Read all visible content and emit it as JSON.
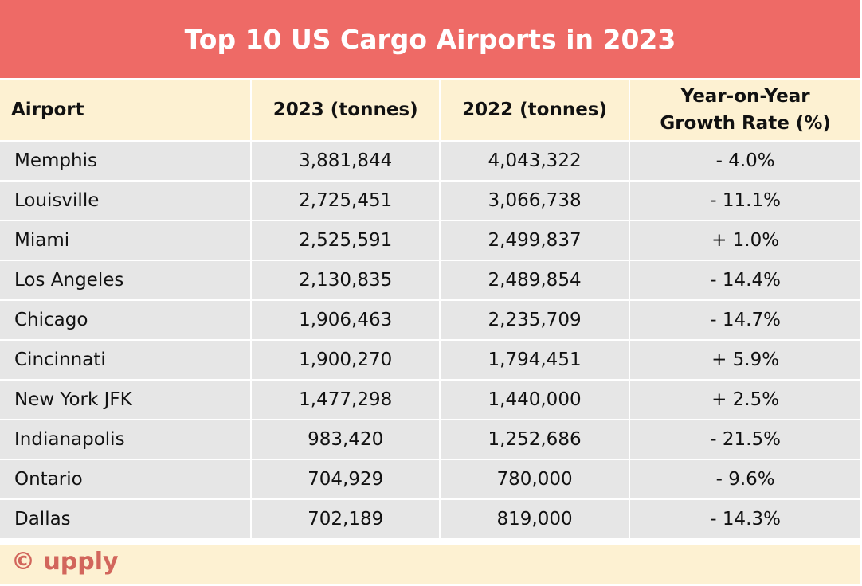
{
  "title": "Top 10 US Cargo Airports in 2023",
  "table": {
    "headers": [
      "Airport",
      "2023 (tonnes)",
      "2022 (tonnes)",
      "Year-on-Year Growth Rate (%)"
    ],
    "rows": [
      [
        "Memphis",
        "3,881,844",
        "4,043,322",
        "- 4.0%"
      ],
      [
        "Louisville",
        "2,725,451",
        "3,066,738",
        "- 11.1%"
      ],
      [
        "Miami",
        "2,525,591",
        "2,499,837",
        "+ 1.0%"
      ],
      [
        "Los Angeles",
        "2,130,835",
        "2,489,854",
        "- 14.4%"
      ],
      [
        "Chicago",
        "1,906,463",
        "2,235,709",
        "- 14.7%"
      ],
      [
        "Cincinnati",
        "1,900,270",
        "1,794,451",
        "+ 5.9%"
      ],
      [
        "New York JFK",
        "1,477,298",
        "1,440,000",
        "+ 2.5%"
      ],
      [
        "Indianapolis",
        "983,420",
        "1,252,686",
        "- 21.5%"
      ],
      [
        "Ontario",
        "704,929",
        "780,000",
        "- 9.6%"
      ],
      [
        "Dallas",
        "702,189",
        "819,000",
        "- 14.3%"
      ]
    ]
  },
  "footer": {
    "logo": "© upply"
  },
  "colors": {
    "title_bg": "#EE6A66",
    "header_bg": "#FDF1D2",
    "row_bg": "#E6E6E6",
    "logo": "#D2665C"
  }
}
